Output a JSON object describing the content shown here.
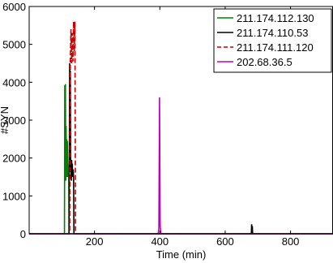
{
  "chart_data": {
    "type": "line",
    "xlabel": "Time (min)",
    "ylabel": "#SYN",
    "xlim": [
      0,
      930
    ],
    "ylim": [
      0,
      6000
    ],
    "xticks": [
      200,
      400,
      600,
      800
    ],
    "yticks": [
      0,
      1000,
      2000,
      3000,
      4000,
      5000,
      6000
    ],
    "grid": false,
    "legend_position": "top-right",
    "series": [
      {
        "name": "211.174.112.130",
        "color": "#008000",
        "dash": "solid",
        "x": [
          0,
          108,
          109,
          110,
          111,
          112,
          113,
          114,
          115,
          116,
          117,
          118,
          119,
          120,
          121,
          122,
          123,
          124,
          125,
          126,
          930
        ],
        "y": [
          0,
          0,
          3920,
          1550,
          3950,
          1400,
          2850,
          1700,
          2500,
          1500,
          2450,
          1900,
          1800,
          1500,
          1650,
          0,
          0,
          0,
          0,
          0,
          0
        ]
      },
      {
        "name": "211.174.110.53",
        "color": "#000000",
        "dash": "solid",
        "x": [
          0,
          122,
          123,
          124,
          125,
          126,
          127,
          128,
          129,
          130,
          131,
          132,
          133,
          134,
          135,
          136,
          137,
          138,
          680,
          681,
          682,
          683,
          684,
          930
        ],
        "y": [
          0,
          0,
          2100,
          4500,
          1800,
          4300,
          1700,
          1850,
          1400,
          1950,
          1600,
          1850,
          1500,
          1550,
          1700,
          1450,
          0,
          0,
          0,
          250,
          80,
          200,
          0,
          0
        ]
      },
      {
        "name": "211.174.111.120",
        "color": "#cc0000",
        "dash": "dashed",
        "x": [
          0,
          124,
          126,
          128,
          130,
          132,
          134,
          136,
          138,
          140,
          142,
          930
        ],
        "y": [
          0,
          0,
          4600,
          5400,
          4500,
          5300,
          4550,
          5600,
          4800,
          5600,
          0,
          0
        ]
      },
      {
        "name": "202.68.36.5",
        "color": "#bf00bf",
        "dash": "solid",
        "x": [
          0,
          395,
          397,
          399,
          401,
          403,
          930
        ],
        "y": [
          0,
          0,
          150,
          3600,
          200,
          0,
          0
        ]
      }
    ]
  }
}
